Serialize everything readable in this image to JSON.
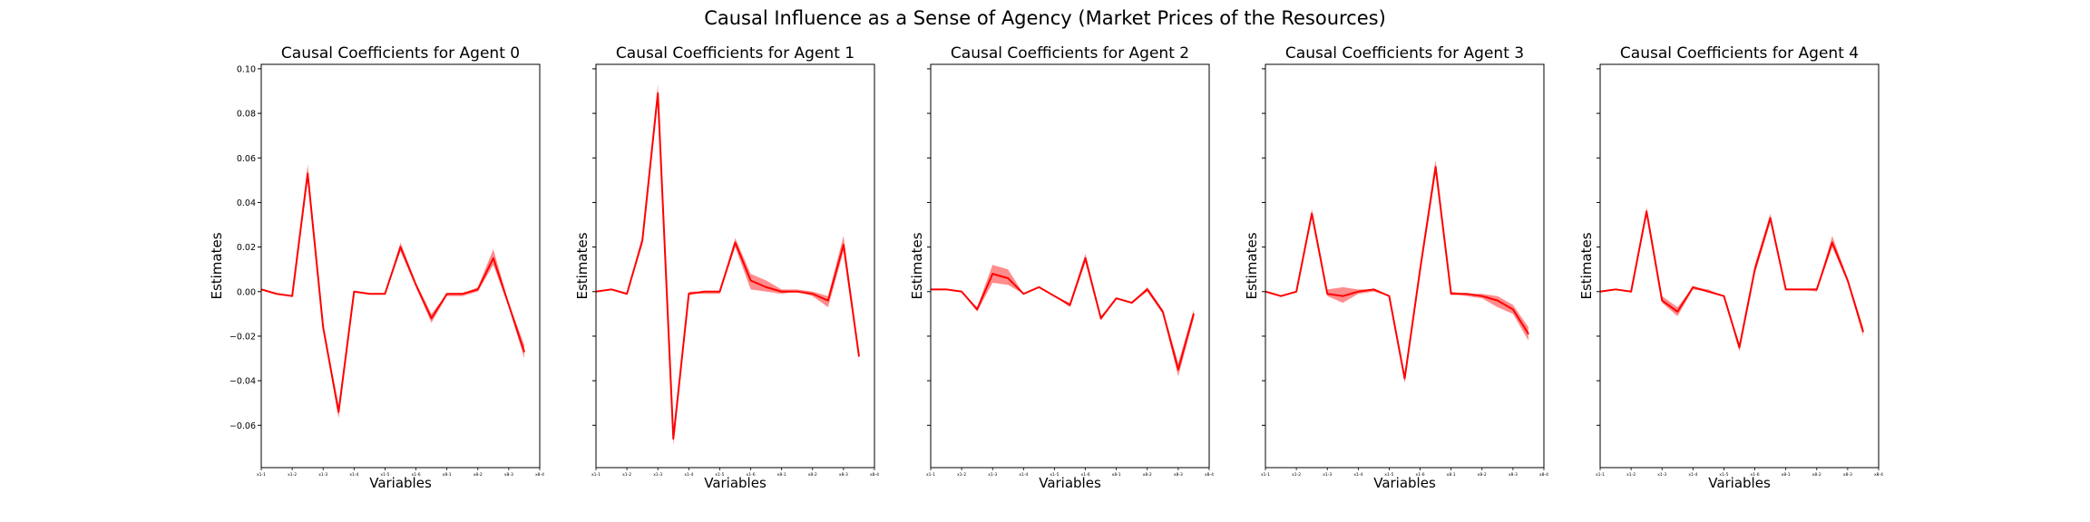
{
  "figure": {
    "suptitle": "Causal Influence as a Sense of Agency (Market Prices of the Resources)"
  },
  "chart_data": [
    {
      "type": "line",
      "title": "Causal Coefficients for Agent 0",
      "xlabel": "Variables",
      "ylabel": "Estimates",
      "ylim": [
        -0.079,
        0.102
      ],
      "yticks": [
        0.1,
        0.08,
        0.06,
        0.04,
        0.02,
        0.0,
        -0.02,
        -0.04,
        -0.06
      ],
      "yticklabels": [
        "0.10",
        "0.08",
        "0.06",
        "0.04",
        "0.02",
        "0.00",
        "−0.02",
        "−0.04",
        "−0.06"
      ],
      "x_tick_positions": [
        0,
        2,
        4,
        6,
        8,
        10,
        12,
        14,
        16,
        18
      ],
      "x_tick_labels": [
        "x1-1",
        "x1-2",
        "x1-3",
        "x1-4",
        "x1-5",
        "x1-6",
        "x8-1",
        "x8-2",
        "x8-3",
        "x8-4"
      ],
      "xlim": [
        0,
        18
      ],
      "color": "#ff0000",
      "series": [
        {
          "x": [
            0,
            1,
            2,
            3,
            4,
            5,
            6,
            7,
            8,
            9,
            10,
            11,
            12,
            13,
            14,
            15,
            16,
            17,
            18
          ],
          "values": [
            0.001,
            -0.001,
            -0.002,
            0.053,
            -0.016,
            -0.054,
            0.0,
            -0.001,
            -0.001,
            0.02,
            0.003,
            -0.012,
            -0.001,
            -0.001,
            0.001,
            0.015,
            -0.006,
            -0.027,
            null
          ],
          "lower": [
            0.001,
            -0.001,
            -0.002,
            0.05,
            -0.017,
            -0.057,
            0.0,
            -0.001,
            -0.001,
            0.018,
            0.002,
            -0.014,
            -0.002,
            -0.002,
            0.0,
            0.012,
            -0.007,
            -0.03,
            null
          ],
          "upper": [
            0.001,
            -0.001,
            -0.002,
            0.057,
            -0.015,
            -0.051,
            0.0,
            -0.001,
            -0.001,
            0.022,
            0.004,
            -0.01,
            -0.001,
            -0.001,
            0.002,
            0.019,
            -0.005,
            -0.024,
            null
          ]
        }
      ]
    },
    {
      "type": "line",
      "title": "Causal Coefficients for Agent 1",
      "xlabel": "Variables",
      "ylabel": "Estimates",
      "ylim": [
        -0.079,
        0.102
      ],
      "yticks": [],
      "yticklabels": [],
      "x_tick_positions": [
        0,
        2,
        4,
        6,
        8,
        10,
        12,
        14,
        16,
        18
      ],
      "x_tick_labels": [
        "x1-1",
        "x1-2",
        "x1-3",
        "x1-4",
        "x1-5",
        "x1-6",
        "x8-1",
        "x8-2",
        "x8-3",
        "x8-4"
      ],
      "xlim": [
        0,
        18
      ],
      "color": "#ff0000",
      "series": [
        {
          "x": [
            0,
            1,
            2,
            3,
            4,
            5,
            6,
            7,
            8,
            9,
            10,
            11,
            12,
            13,
            14,
            15,
            16,
            17,
            18
          ],
          "values": [
            0.0,
            0.001,
            -0.001,
            0.023,
            0.089,
            -0.066,
            -0.001,
            0.0,
            0.0,
            0.022,
            0.005,
            0.002,
            0.0,
            0.0,
            -0.001,
            -0.004,
            0.021,
            -0.029,
            null
          ],
          "lower": [
            0.0,
            0.001,
            -0.001,
            0.021,
            0.086,
            -0.069,
            -0.001,
            -0.001,
            -0.001,
            0.02,
            0.001,
            0.0,
            -0.001,
            0.0,
            -0.002,
            -0.007,
            0.018,
            -0.031,
            null
          ],
          "upper": [
            0.0,
            0.001,
            -0.001,
            0.025,
            0.093,
            -0.063,
            0.0,
            0.0,
            0.0,
            0.024,
            0.008,
            0.005,
            0.001,
            0.001,
            0.0,
            -0.002,
            0.025,
            -0.027,
            null
          ]
        }
      ]
    },
    {
      "type": "line",
      "title": "Causal Coefficients for Agent 2",
      "xlabel": "Variables",
      "ylabel": "Estimates",
      "ylim": [
        -0.079,
        0.102
      ],
      "yticks": [],
      "yticklabels": [],
      "x_tick_positions": [
        0,
        2,
        4,
        6,
        8,
        10,
        12,
        14,
        16,
        18
      ],
      "x_tick_labels": [
        "x1-1",
        "x1-2",
        "x1-3",
        "x1-4",
        "x1-5",
        "x1-6",
        "x8-1",
        "x8-2",
        "x8-3",
        "x8-4"
      ],
      "xlim": [
        0,
        18
      ],
      "color": "#ff0000",
      "series": [
        {
          "x": [
            0,
            1,
            2,
            3,
            4,
            5,
            6,
            7,
            8,
            9,
            10,
            11,
            12,
            13,
            14,
            15,
            16,
            17,
            18
          ],
          "values": [
            0.001,
            0.001,
            0.0,
            -0.008,
            0.008,
            0.006,
            -0.001,
            0.002,
            -0.002,
            -0.006,
            0.015,
            -0.012,
            -0.003,
            -0.005,
            0.001,
            -0.009,
            -0.035,
            -0.01,
            null
          ],
          "lower": [
            0.001,
            0.001,
            0.0,
            -0.009,
            0.004,
            0.003,
            -0.001,
            0.002,
            -0.002,
            -0.007,
            0.013,
            -0.013,
            -0.003,
            -0.005,
            0.0,
            -0.01,
            -0.038,
            -0.012,
            null
          ],
          "upper": [
            0.001,
            0.001,
            0.0,
            -0.007,
            0.012,
            0.01,
            -0.001,
            0.002,
            -0.002,
            -0.005,
            0.017,
            -0.011,
            -0.003,
            -0.005,
            0.002,
            -0.008,
            -0.032,
            -0.008,
            null
          ]
        }
      ]
    },
    {
      "type": "line",
      "title": "Causal Coefficients for Agent 3",
      "xlabel": "Variables",
      "ylabel": "Estimates",
      "ylim": [
        -0.079,
        0.102
      ],
      "yticks": [],
      "yticklabels": [],
      "x_tick_positions": [
        0,
        2,
        4,
        6,
        8,
        10,
        12,
        14,
        16,
        18
      ],
      "x_tick_labels": [
        "x1-1",
        "x1-2",
        "x1-3",
        "x1-4",
        "x1-5",
        "x1-6",
        "x8-1",
        "x8-2",
        "x8-3",
        "x8-4"
      ],
      "xlim": [
        0,
        18
      ],
      "color": "#ff0000",
      "series": [
        {
          "x": [
            0,
            1,
            2,
            3,
            4,
            5,
            6,
            7,
            8,
            9,
            10,
            11,
            12,
            13,
            14,
            15,
            16,
            17,
            18
          ],
          "values": [
            0.0,
            -0.002,
            0.0,
            0.035,
            -0.001,
            -0.002,
            0.0,
            0.001,
            -0.002,
            -0.039,
            0.01,
            0.056,
            -0.001,
            -0.001,
            -0.002,
            -0.004,
            -0.008,
            -0.019,
            null
          ],
          "lower": [
            0.0,
            -0.002,
            0.0,
            0.033,
            -0.002,
            -0.005,
            -0.001,
            0.0,
            -0.002,
            -0.041,
            0.008,
            0.053,
            -0.001,
            -0.002,
            -0.003,
            -0.007,
            -0.01,
            -0.022,
            null
          ],
          "upper": [
            0.0,
            -0.002,
            0.0,
            0.037,
            0.001,
            0.002,
            0.001,
            0.001,
            -0.002,
            -0.037,
            0.012,
            0.059,
            0.0,
            -0.001,
            -0.001,
            -0.002,
            -0.006,
            -0.016,
            null
          ]
        }
      ]
    },
    {
      "type": "line",
      "title": "Causal Coefficients for Agent 4",
      "xlabel": "Variables",
      "ylabel": "Estimates",
      "ylim": [
        -0.079,
        0.102
      ],
      "yticks": [],
      "yticklabels": [],
      "x_tick_positions": [
        0,
        2,
        4,
        6,
        8,
        10,
        12,
        14,
        16,
        18
      ],
      "x_tick_labels": [
        "x1-1",
        "x1-2",
        "x1-3",
        "x1-4",
        "x1-5",
        "x1-6",
        "x8-1",
        "x8-2",
        "x8-3",
        "x8-4"
      ],
      "xlim": [
        0,
        18
      ],
      "color": "#ff0000",
      "series": [
        {
          "x": [
            0,
            1,
            2,
            3,
            4,
            5,
            6,
            7,
            8,
            9,
            10,
            11,
            12,
            13,
            14,
            15,
            16,
            17,
            18
          ],
          "values": [
            0.0,
            0.001,
            0.0,
            0.036,
            -0.004,
            -0.009,
            0.002,
            0.0,
            -0.002,
            -0.025,
            0.01,
            0.033,
            0.001,
            0.001,
            0.001,
            0.022,
            0.005,
            -0.018,
            null
          ],
          "lower": [
            0.0,
            0.001,
            0.0,
            0.034,
            -0.005,
            -0.011,
            0.001,
            0.0,
            -0.002,
            -0.027,
            0.008,
            0.031,
            0.001,
            0.001,
            0.0,
            0.02,
            0.004,
            -0.02,
            null
          ],
          "upper": [
            0.0,
            0.001,
            0.0,
            0.038,
            -0.002,
            -0.007,
            0.002,
            0.001,
            -0.002,
            -0.023,
            0.012,
            0.035,
            0.001,
            0.001,
            0.001,
            0.025,
            0.006,
            -0.016,
            null
          ]
        }
      ]
    }
  ]
}
